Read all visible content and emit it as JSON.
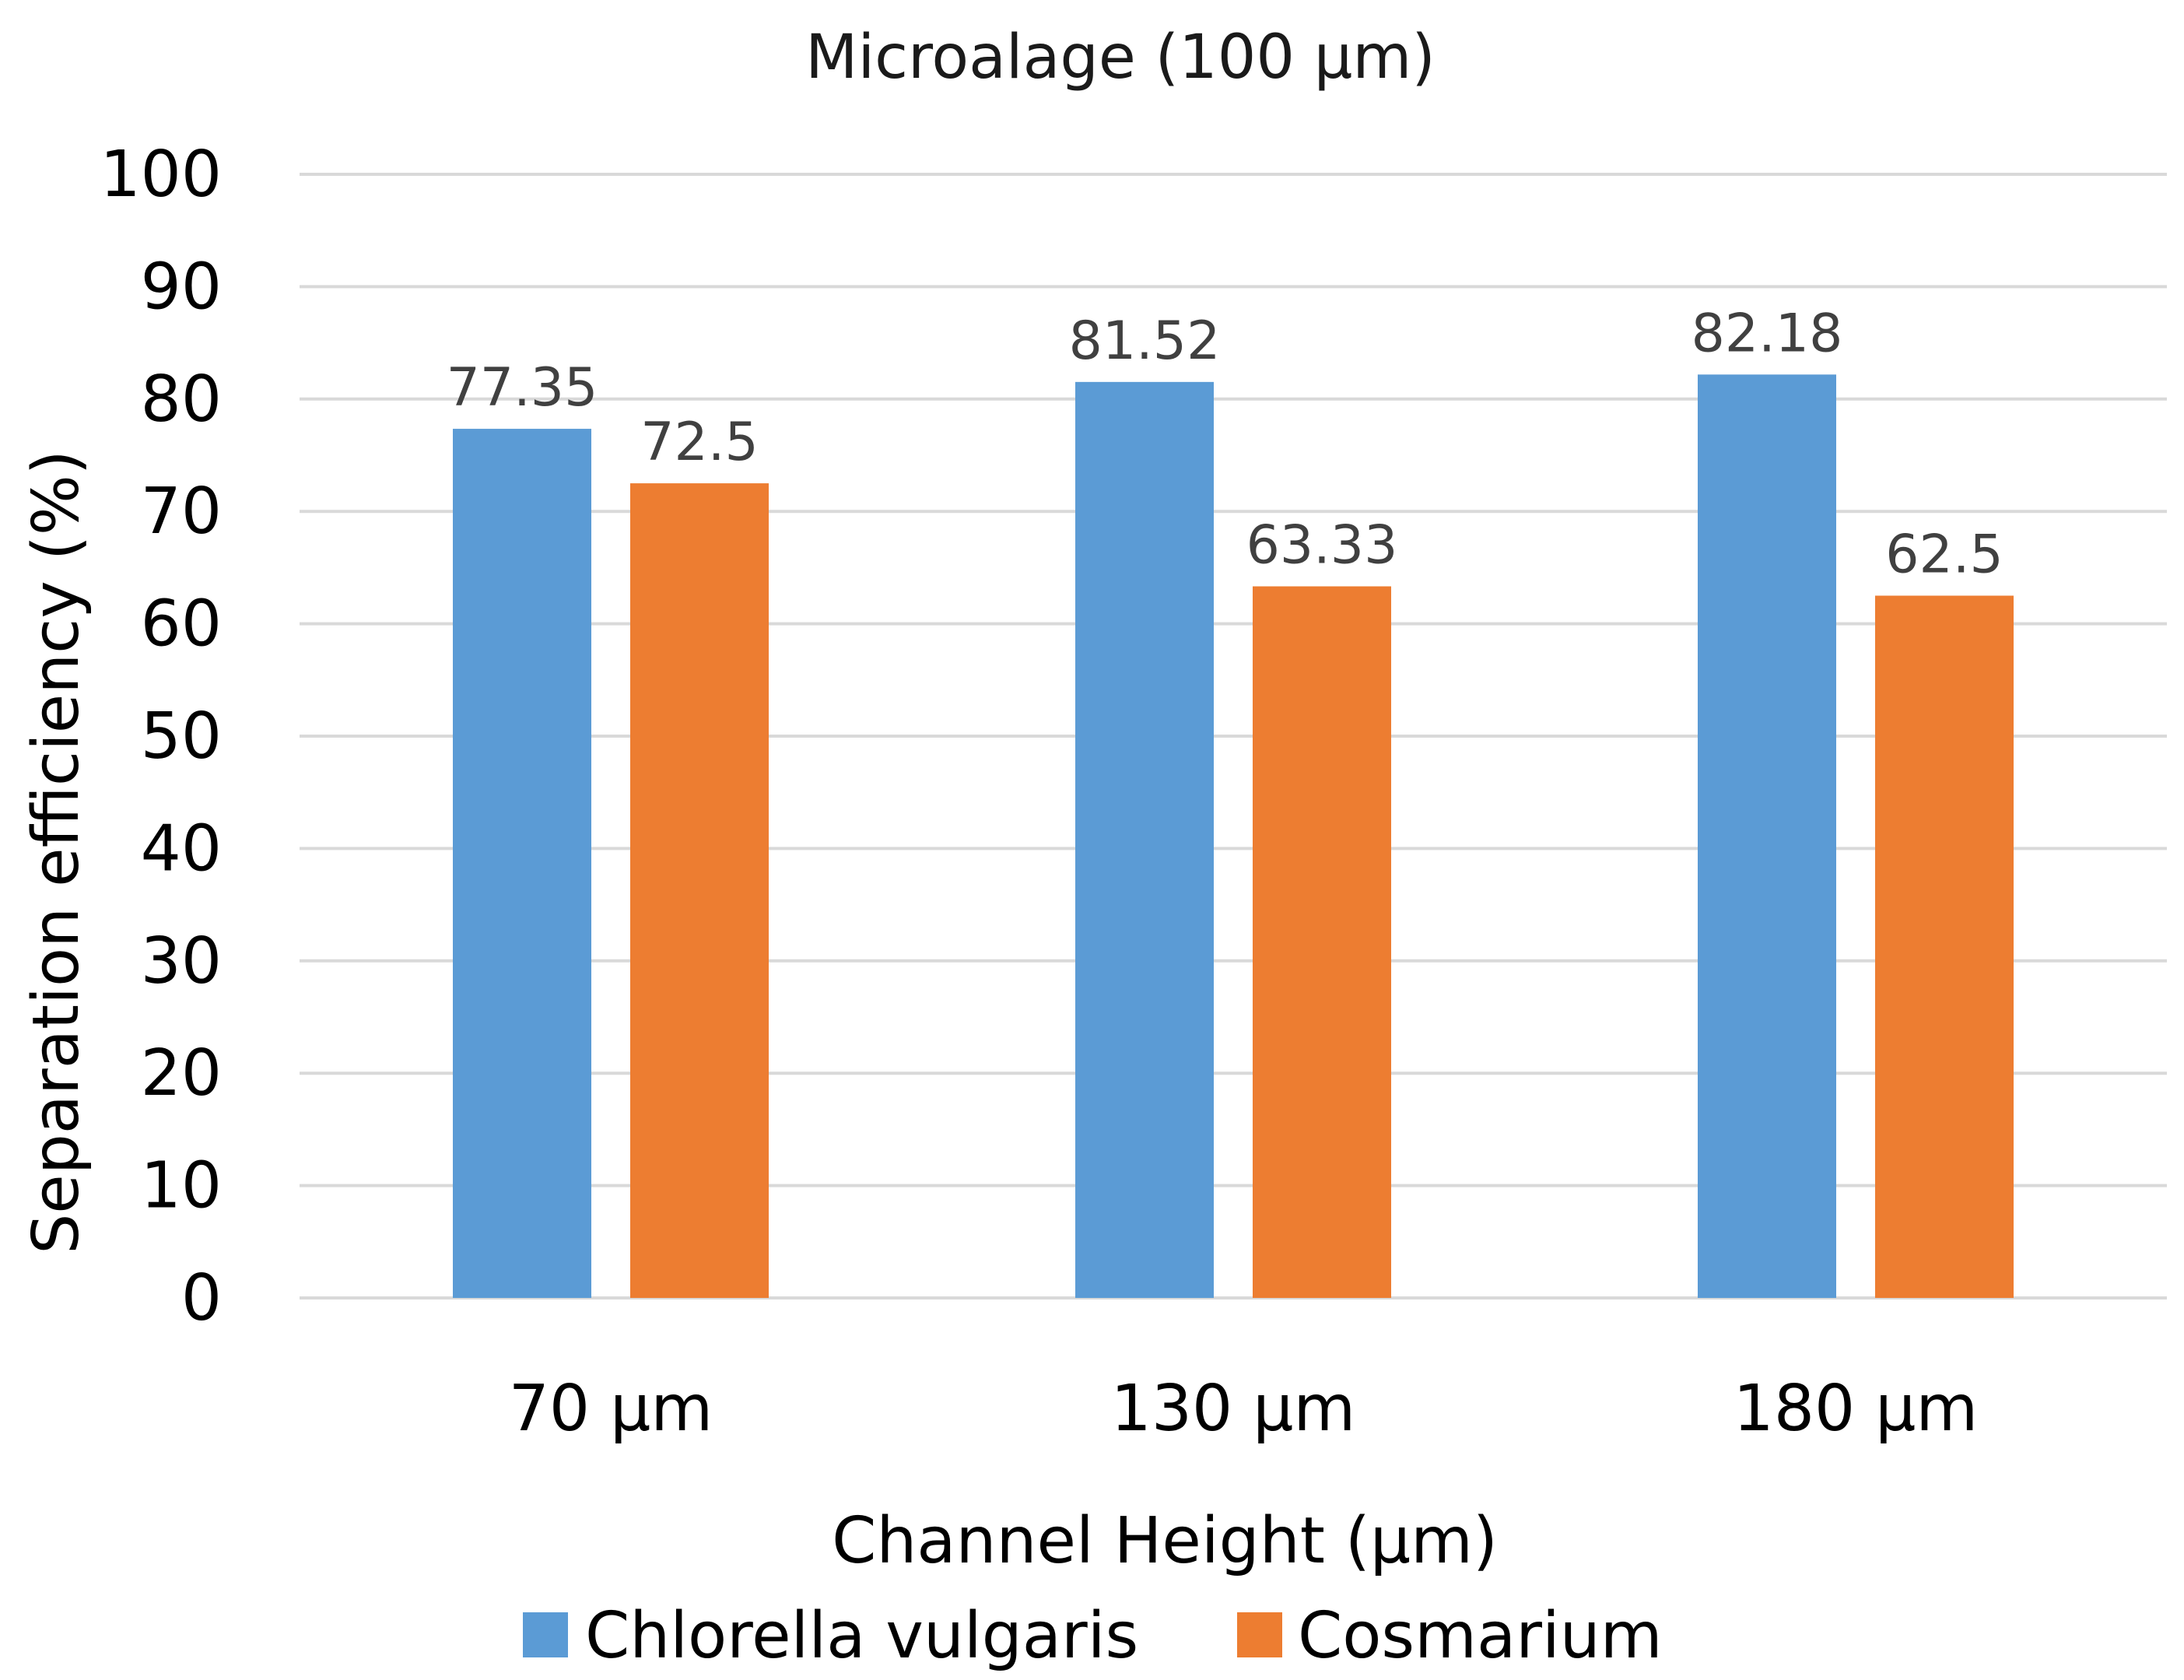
{
  "chart_data": {
    "type": "bar",
    "title": "Microalage (100 μm)",
    "xlabel": "Channel Height (μm)",
    "ylabel": "Separation efficiency (%)",
    "categories": [
      "70 μm",
      "130 μm",
      "180 μm"
    ],
    "series": [
      {
        "name": "Chlorella vulgaris",
        "color": "#5b9bd5",
        "values": [
          77.35,
          81.52,
          82.18
        ],
        "labels": [
          "77.35",
          "81.52",
          "82.18"
        ]
      },
      {
        "name": "Cosmarium",
        "color": "#ed7d31",
        "values": [
          72.5,
          63.33,
          62.5
        ],
        "labels": [
          "72.5",
          "63.33",
          "62.5"
        ]
      }
    ],
    "ylim": [
      0,
      100
    ],
    "yticks": [
      0,
      10,
      20,
      30,
      40,
      50,
      60,
      70,
      80,
      90,
      100
    ],
    "grid": true,
    "legend": "bottom"
  }
}
